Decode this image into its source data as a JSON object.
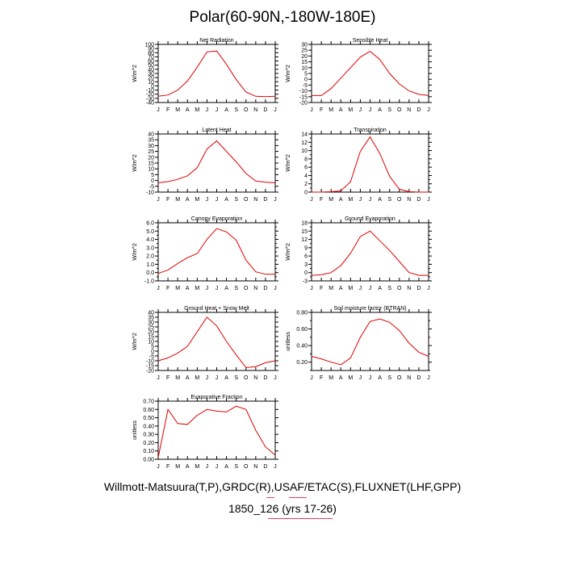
{
  "figure": {
    "title": "Polar(60-90N,-180W-180E)",
    "footer_line1": "Willmott-Matsuura(T,P),GRDC(R),USAF/ETAC(S),FLUXNET(LHF,GPP)",
    "footer_line2": "1850_126 (yrs 17-26)",
    "line_color": "#e00000"
  },
  "chart_data": [
    {
      "type": "line",
      "title": "Net Radiation",
      "ylabel": "W/m^2",
      "categories": [
        "J",
        "F",
        "M",
        "A",
        "M",
        "J",
        "J",
        "A",
        "S",
        "O",
        "N",
        "D",
        "J"
      ],
      "values": [
        -25,
        -22,
        -10,
        12,
        45,
        82,
        84,
        52,
        15,
        -15,
        -25,
        -26,
        -25
      ],
      "ylim": [
        -40,
        100
      ],
      "yticks": [
        -40,
        -30,
        -20,
        -10,
        0,
        10,
        20,
        30,
        40,
        50,
        60,
        70,
        80,
        90,
        100
      ],
      "ytick_labels": [
        "-40",
        "-30",
        "-20",
        "-10",
        "0",
        "10",
        "20",
        "30",
        "40",
        "50",
        "60",
        "70",
        "80",
        "90",
        "100"
      ]
    },
    {
      "type": "line",
      "title": "Sensible Heat",
      "ylabel": "W/m^2",
      "categories": [
        "J",
        "F",
        "M",
        "A",
        "M",
        "J",
        "J",
        "A",
        "S",
        "O",
        "N",
        "D",
        "J"
      ],
      "values": [
        -14,
        -14,
        -8,
        1,
        10,
        19,
        24,
        17,
        5,
        -4,
        -10,
        -13,
        -14
      ],
      "ylim": [
        -20,
        30
      ],
      "yticks": [
        -20,
        -15,
        -10,
        -5,
        0,
        5,
        10,
        15,
        20,
        25,
        30
      ],
      "ytick_labels": [
        "-20",
        "-15",
        "-10",
        "-5",
        "0",
        "5",
        "10",
        "15",
        "20",
        "25",
        "30"
      ]
    },
    {
      "type": "line",
      "title": "Latent Heat",
      "ylabel": "W/m^2",
      "categories": [
        "J",
        "F",
        "M",
        "A",
        "M",
        "J",
        "J",
        "A",
        "S",
        "O",
        "N",
        "D",
        "J"
      ],
      "values": [
        -2,
        -1,
        1,
        4,
        11,
        27,
        34,
        25,
        16,
        6,
        -0.5,
        -1.5,
        -2
      ],
      "ylim": [
        -10,
        40
      ],
      "yticks": [
        -10,
        -5,
        0,
        5,
        10,
        15,
        20,
        25,
        30,
        35,
        40
      ],
      "ytick_labels": [
        "-10",
        "-5",
        "0",
        "5",
        "10",
        "15",
        "20",
        "25",
        "30",
        "35",
        "40"
      ]
    },
    {
      "type": "line",
      "title": "Transpiration",
      "ylabel": "W/m^2",
      "categories": [
        "J",
        "F",
        "M",
        "A",
        "M",
        "J",
        "J",
        "A",
        "S",
        "O",
        "N",
        "D",
        "J"
      ],
      "values": [
        0,
        0,
        0.1,
        0.3,
        2.5,
        9.8,
        13.3,
        9.3,
        3.8,
        0.7,
        0.1,
        0,
        0
      ],
      "ylim": [
        0,
        14
      ],
      "yticks": [
        0,
        1,
        2,
        3,
        4,
        5,
        6,
        7,
        8,
        9,
        10,
        11,
        12,
        13,
        14
      ],
      "ytick_labels": [
        "0",
        "",
        "2",
        "",
        "4",
        "",
        "6",
        "",
        "8",
        "",
        "10",
        "",
        "12",
        "",
        "14"
      ]
    },
    {
      "type": "line",
      "title": "Canopy Evaporation",
      "ylabel": "W/m^2",
      "categories": [
        "J",
        "F",
        "M",
        "A",
        "M",
        "J",
        "J",
        "A",
        "S",
        "O",
        "N",
        "D",
        "J"
      ],
      "values": [
        -0.1,
        0.3,
        1.1,
        1.8,
        2.3,
        4.0,
        5.3,
        4.9,
        3.9,
        1.5,
        0.1,
        -0.2,
        -0.2
      ],
      "ylim": [
        -1,
        6
      ],
      "yticks": [
        -1,
        -0.5,
        0,
        0.5,
        1,
        1.5,
        2,
        2.5,
        3,
        3.5,
        4,
        4.5,
        5,
        5.5,
        6
      ],
      "ytick_labels": [
        "-1.0",
        "",
        "0.0",
        "",
        "1.0",
        "",
        "2.0",
        "",
        "3.0",
        "",
        "4.0",
        "",
        "5.0",
        "",
        "6.0"
      ]
    },
    {
      "type": "line",
      "title": "Ground Evaporation",
      "ylabel": "W/m^2",
      "categories": [
        "J",
        "F",
        "M",
        "A",
        "M",
        "J",
        "J",
        "A",
        "S",
        "O",
        "N",
        "D",
        "J"
      ],
      "values": [
        -1,
        -0.8,
        0,
        2.5,
        7,
        13,
        15,
        11.5,
        8,
        4,
        0,
        -1,
        -1
      ],
      "ylim": [
        -3,
        18
      ],
      "yticks": [
        -3,
        -1.5,
        0,
        1.5,
        3,
        4.5,
        6,
        7.5,
        9,
        10.5,
        12,
        13.5,
        15,
        16.5,
        18
      ],
      "ytick_labels": [
        "-3",
        "",
        "0",
        "",
        "3",
        "",
        "6",
        "",
        "9",
        "",
        "12",
        "",
        "15",
        "",
        "18"
      ]
    },
    {
      "type": "line",
      "title": "Ground Heat + Snow Melt",
      "ylabel": "W/m^2",
      "categories": [
        "J",
        "F",
        "M",
        "A",
        "M",
        "J",
        "J",
        "A",
        "S",
        "O",
        "N",
        "D",
        "J"
      ],
      "values": [
        -10,
        -7,
        -2,
        5,
        20,
        35,
        26,
        10,
        -4,
        -17,
        -16,
        -12,
        -10
      ],
      "ylim": [
        -20,
        40
      ],
      "yticks": [
        -20,
        -15,
        -10,
        -5,
        0,
        5,
        10,
        15,
        20,
        25,
        30,
        35,
        40
      ],
      "ytick_labels": [
        "-20",
        "-15",
        "-10",
        "-5",
        "0",
        "5",
        "10",
        "15",
        "20",
        "25",
        "30",
        "35",
        "40"
      ]
    },
    {
      "type": "line",
      "title": "Soil moisture factor (BTRAN)",
      "ylabel": "unitless",
      "categories": [
        "J",
        "F",
        "M",
        "A",
        "M",
        "J",
        "J",
        "A",
        "S",
        "O",
        "N",
        "D",
        "J"
      ],
      "values": [
        0.27,
        0.24,
        0.2,
        0.17,
        0.25,
        0.5,
        0.69,
        0.72,
        0.68,
        0.58,
        0.43,
        0.32,
        0.27
      ],
      "ylim": [
        0.1,
        0.8
      ],
      "yticks": [
        0.1,
        0.2,
        0.3,
        0.4,
        0.5,
        0.6,
        0.7,
        0.8
      ],
      "ytick_labels": [
        "",
        "0.20",
        "",
        "0.40",
        "",
        "0.60",
        "",
        "0.80"
      ]
    },
    {
      "type": "line",
      "title": "Evaporative Fraction",
      "ylabel": "unitless",
      "categories": [
        "J",
        "F",
        "M",
        "A",
        "M",
        "J",
        "J",
        "A",
        "S",
        "O",
        "N",
        "D",
        "J"
      ],
      "values": [
        0.02,
        0.6,
        0.43,
        0.42,
        0.53,
        0.6,
        0.58,
        0.57,
        0.64,
        0.6,
        0.35,
        0.15,
        0.05
      ],
      "ylim": [
        0,
        0.7
      ],
      "yticks": [
        0,
        0.1,
        0.2,
        0.3,
        0.4,
        0.5,
        0.6,
        0.7
      ],
      "ytick_labels": [
        "0.00",
        "0.10",
        "0.20",
        "0.30",
        "0.40",
        "0.50",
        "0.60",
        "0.70"
      ]
    }
  ]
}
